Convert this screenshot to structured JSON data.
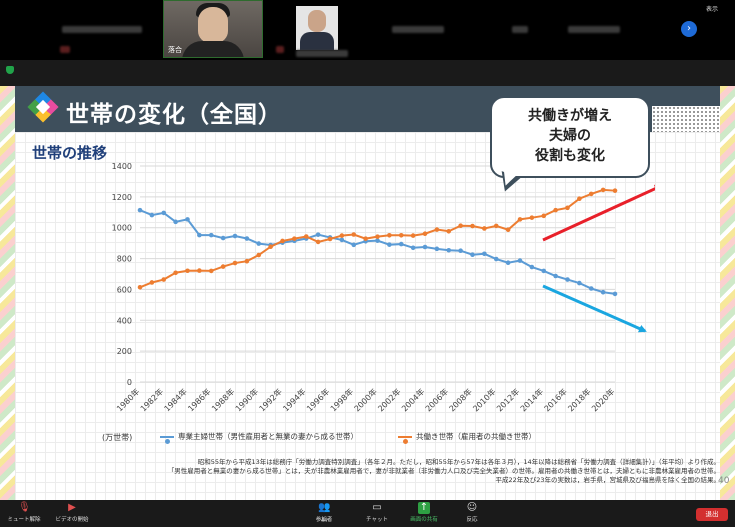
{
  "meeting": {
    "active_speaker_name": "落合",
    "view_label": "表示",
    "next_icon": "chevron-right-icon"
  },
  "slide": {
    "title": "世帯の変化（全国）",
    "section_title": "世帯の推移",
    "bubble_lines": [
      "共働きが増え",
      "夫婦の",
      "役割も変化"
    ],
    "unit_label": "(万世帯)",
    "legend": [
      {
        "label": "専業主婦世帯（男性雇用者と無業の妻から成る世帯）",
        "color": "#5b9bd5"
      },
      {
        "label": "共働き世帯（雇用者の共働き世帯）",
        "color": "#ed7d31"
      }
    ],
    "notes": [
      "昭和55年から平成13年は総務庁「労働力調査特別調査」（各年２月。ただし，昭和55年から57年は各年３月），14年以降は総務省「労働力調査（詳細集計）」（年平均）より作成。",
      "「男性雇用者と無業の妻から成る世帯」とは，夫が非農林業雇用者で，妻が非就業者（非労働力人口及び完全失業者）の世帯。雇用者の共働き世帯とは，夫婦ともに非農林業雇用者の世帯。",
      "平成22年及び23年の実数は，岩手県，宮城県及び福島県を除く全国の結果。"
    ],
    "page_number": "40"
  },
  "chart_data": {
    "type": "line",
    "ylim": [
      0,
      1400
    ],
    "yticks": [
      0,
      200,
      400,
      600,
      800,
      1000,
      1200,
      1400
    ],
    "x": [
      1980,
      1981,
      1982,
      1983,
      1984,
      1985,
      1986,
      1987,
      1988,
      1989,
      1990,
      1991,
      1992,
      1993,
      1994,
      1995,
      1996,
      1997,
      1998,
      1999,
      2000,
      2001,
      2002,
      2003,
      2004,
      2005,
      2006,
      2007,
      2008,
      2009,
      2010,
      2011,
      2012,
      2013,
      2014,
      2015,
      2016,
      2017,
      2018,
      2019,
      2020
    ],
    "xtick_labels": [
      "1980年",
      "1982年",
      "1984年",
      "1986年",
      "1988年",
      "1990年",
      "1992年",
      "1994年",
      "1996年",
      "1998年",
      "2000年",
      "2002年",
      "2004年",
      "2006年",
      "2008年",
      "2010年",
      "2012年",
      "2014年",
      "2016年",
      "2018年",
      "2020年"
    ],
    "series": [
      {
        "name": "専業主婦世帯（男性雇用者と無業の妻から成る世帯）",
        "color": "#5b9bd5",
        "values": [
          1114,
          1082,
          1096,
          1038,
          1054,
          952,
          952,
          933,
          946,
          930,
          897,
          888,
          903,
          915,
          930,
          955,
          937,
          921,
          889,
          912,
          916,
          890,
          894,
          870,
          875,
          863,
          854,
          851,
          825,
          831,
          797,
          773,
          787,
          745,
          720,
          687,
          664,
          641,
          606,
          582,
          571
        ]
      },
      {
        "name": "共働き世帯（雇用者の共働き世帯）",
        "color": "#ed7d31",
        "values": [
          614,
          645,
          664,
          708,
          721,
          722,
          720,
          748,
          771,
          783,
          823,
          877,
          914,
          929,
          943,
          908,
          927,
          949,
          956,
          929,
          942,
          951,
          951,
          949,
          961,
          988,
          977,
          1013,
          1011,
          995,
          1012,
          987,
          1054,
          1065,
          1077,
          1114,
          1129,
          1188,
          1219,
          1245,
          1240
        ]
      }
    ],
    "annotations": [
      "共働きが増え",
      "夫婦の",
      "役割も変化"
    ]
  },
  "toolbar": {
    "mute_label": "ミュート解除",
    "video_label": "ビデオの開始",
    "participants_label": "参加者",
    "participants_count": "44",
    "chat_label": "チャット",
    "share_label": "画面の共有",
    "reaction_label": "反応",
    "leave_label": "退出"
  }
}
